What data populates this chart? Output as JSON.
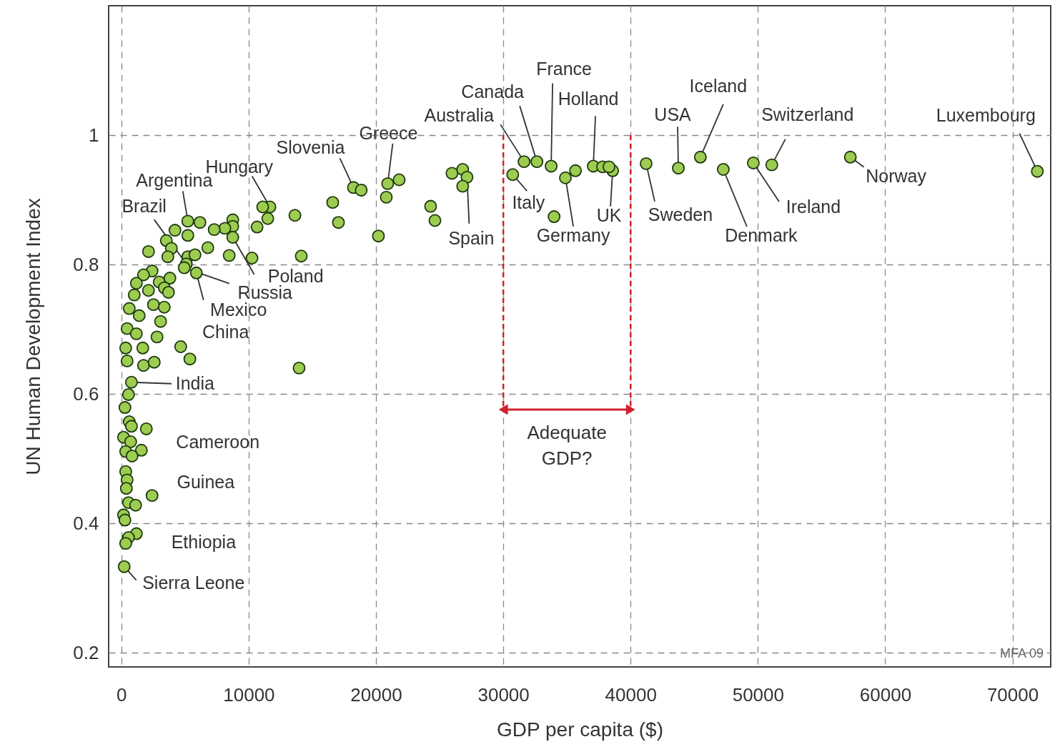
{
  "chart_data": {
    "type": "scatter",
    "xlabel": "GDP per capita ($)",
    "ylabel": "UN Human Development Index",
    "xlim": [
      -1000,
      73000
    ],
    "ylim": [
      0.178,
      1.2
    ],
    "xticks": [
      0,
      10000,
      20000,
      30000,
      40000,
      50000,
      60000,
      70000
    ],
    "yticks": [
      0.2,
      0.4,
      0.6,
      0.8,
      1
    ],
    "grid": true,
    "marker": "circle",
    "series": [
      {
        "color": "#9ccc50",
        "x": [
          71950,
          57260,
          51090,
          49640,
          47280,
          45480,
          43750,
          41220,
          38590,
          37070,
          37800,
          38300,
          33760,
          32640,
          31630,
          30740,
          34880,
          35670,
          33990,
          25970,
          26810,
          27150,
          26810,
          24290,
          24630,
          20190,
          20810,
          20920,
          21820,
          18230,
          18840,
          16600,
          17050,
          13630,
          14130,
          13960,
          11670,
          11100,
          11500,
          10660,
          10260,
          8750,
          8750,
          8130,
          8750,
          8470,
          7290,
          6790,
          6170,
          5220,
          5220,
          4210,
          3530,
          3930,
          2130,
          3650,
          5220,
          5780,
          5100,
          5890,
          4940,
          2410,
          2970,
          1740,
          1180,
          3810,
          1010,
          2130,
          3370,
          3700,
          620,
          1400,
          2520,
          3370,
          3080,
          450,
          1180,
          2800,
          340,
          1680,
          4660,
          450,
          1740,
          2580,
          5380,
          790,
          560,
          280,
          620,
          790,
          1960,
          170,
          730,
          1570,
          340,
          840,
          340,
          450,
          390,
          2410,
          560,
          1120,
          170,
          280,
          1180,
          560,
          340,
          220
        ],
        "values": [
          0.944,
          0.966,
          0.954,
          0.957,
          0.947,
          0.966,
          0.949,
          0.956,
          0.945,
          0.952,
          0.951,
          0.951,
          0.952,
          0.959,
          0.959,
          0.939,
          0.934,
          0.945,
          0.874,
          0.941,
          0.947,
          0.935,
          0.921,
          0.89,
          0.868,
          0.844,
          0.904,
          0.925,
          0.931,
          0.919,
          0.915,
          0.896,
          0.865,
          0.876,
          0.813,
          0.64,
          0.889,
          0.889,
          0.871,
          0.858,
          0.81,
          0.869,
          0.859,
          0.856,
          0.842,
          0.814,
          0.854,
          0.826,
          0.865,
          0.867,
          0.845,
          0.853,
          0.837,
          0.825,
          0.82,
          0.812,
          0.812,
          0.815,
          0.801,
          0.787,
          0.795,
          0.79,
          0.773,
          0.784,
          0.771,
          0.779,
          0.753,
          0.76,
          0.764,
          0.757,
          0.732,
          0.721,
          0.738,
          0.734,
          0.712,
          0.701,
          0.693,
          0.688,
          0.671,
          0.671,
          0.673,
          0.651,
          0.644,
          0.649,
          0.654,
          0.618,
          0.599,
          0.579,
          0.557,
          0.55,
          0.546,
          0.533,
          0.526,
          0.513,
          0.511,
          0.504,
          0.48,
          0.467,
          0.454,
          0.443,
          0.432,
          0.428,
          0.413,
          0.405,
          0.384,
          0.378,
          0.369,
          0.333
        ]
      }
    ],
    "ref_lines": [
      {
        "axis": "x",
        "value": 30000,
        "color": "#d0202e",
        "line_style": "dashed"
      },
      {
        "axis": "x",
        "value": 40000,
        "color": "#d0202e",
        "line_style": "dashed"
      }
    ],
    "annotations": [
      {
        "text": "Luxembourg",
        "x": 71950,
        "y": 0.944
      },
      {
        "text": "Norway",
        "x": 57260,
        "y": 0.966
      },
      {
        "text": "Switzerland",
        "x": 51090,
        "y": 0.954
      },
      {
        "text": "Ireland",
        "x": 49640,
        "y": 0.957
      },
      {
        "text": "Denmark",
        "x": 47280,
        "y": 0.947
      },
      {
        "text": "Iceland",
        "x": 45480,
        "y": 0.966
      },
      {
        "text": "USA",
        "x": 43750,
        "y": 0.949
      },
      {
        "text": "Sweden",
        "x": 41220,
        "y": 0.956
      },
      {
        "text": "UK",
        "x": 38590,
        "y": 0.945
      },
      {
        "text": "Holland",
        "x": 37070,
        "y": 0.952
      },
      {
        "text": "France",
        "x": 33760,
        "y": 0.952
      },
      {
        "text": "Canada",
        "x": 32640,
        "y": 0.959
      },
      {
        "text": "Australia",
        "x": 31630,
        "y": 0.959
      },
      {
        "text": "Italy",
        "x": 30740,
        "y": 0.939
      },
      {
        "text": "Germany",
        "x": 34880,
        "y": 0.934
      },
      {
        "text": "Spain",
        "x": 27150,
        "y": 0.935
      },
      {
        "text": "Greece",
        "x": 20920,
        "y": 0.925
      },
      {
        "text": "Slovenia",
        "x": 18230,
        "y": 0.919
      },
      {
        "text": "Hungary",
        "x": 11670,
        "y": 0.889
      },
      {
        "text": "Argentina",
        "x": 5220,
        "y": 0.867
      },
      {
        "text": "Brazil",
        "x": 5100,
        "y": 0.801
      },
      {
        "text": "Poland",
        "x": 8750,
        "y": 0.842
      },
      {
        "text": "Russia",
        "x": 4940,
        "y": 0.795
      },
      {
        "text": "Mexico",
        "x": 5890,
        "y": 0.787
      },
      {
        "text": "China",
        "x": 2800,
        "y": 0.688
      },
      {
        "text": "India",
        "x": 790,
        "y": 0.618
      },
      {
        "text": "Cameroon",
        "x": 1960,
        "y": 0.546
      },
      {
        "text": "Guinea",
        "x": 450,
        "y": 0.467
      },
      {
        "text": "Ethiopia",
        "x": 340,
        "y": 0.369
      },
      {
        "text": "Sierra Leone",
        "x": 220,
        "y": 0.333
      },
      "Adequate\nGDP?",
      "MFA 09"
    ]
  }
}
